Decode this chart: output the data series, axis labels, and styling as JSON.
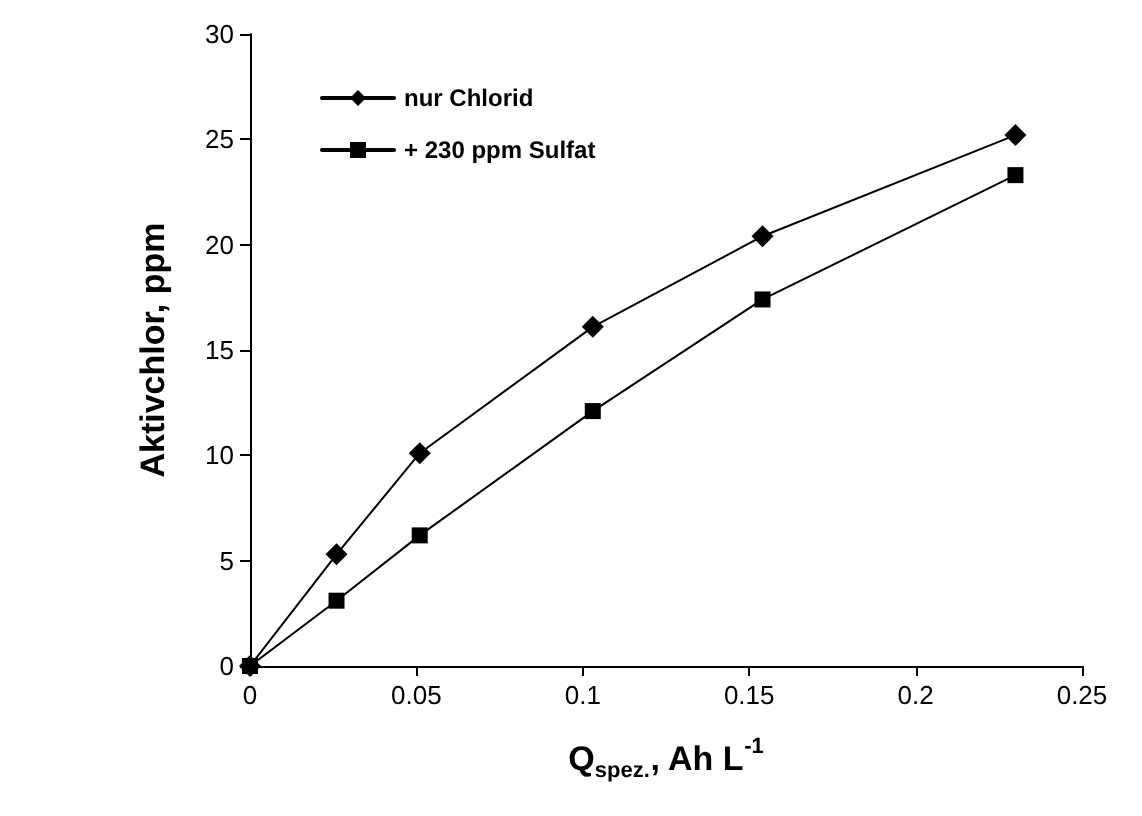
{
  "chart_data": {
    "type": "line",
    "xlabel": "Q$_{spez.}$, Ah L$^{-1}$",
    "ylabel": "Aktivchlor, ppm",
    "x": [
      0,
      0.026,
      0.051,
      0.103,
      0.154,
      0.23
    ],
    "series": [
      {
        "name": "nur Chlorid",
        "color": "#000000",
        "marker": "diamond",
        "values": [
          0,
          5.3,
          10.1,
          16.1,
          20.4,
          25.2
        ]
      },
      {
        "name": "+ 230 ppm Sulfat",
        "color": "#000000",
        "marker": "square",
        "values": [
          0,
          3.1,
          6.2,
          12.1,
          17.4,
          23.3
        ]
      }
    ],
    "xlim": [
      0,
      0.25
    ],
    "xticks": [
      0,
      0.05,
      0.1,
      0.15,
      0.2,
      0.25
    ],
    "ylim": [
      0,
      30
    ],
    "yticks": [
      0,
      5,
      10,
      15,
      20,
      25,
      30
    ],
    "grid": false,
    "legend": "top left",
    "line_style": "solid"
  }
}
